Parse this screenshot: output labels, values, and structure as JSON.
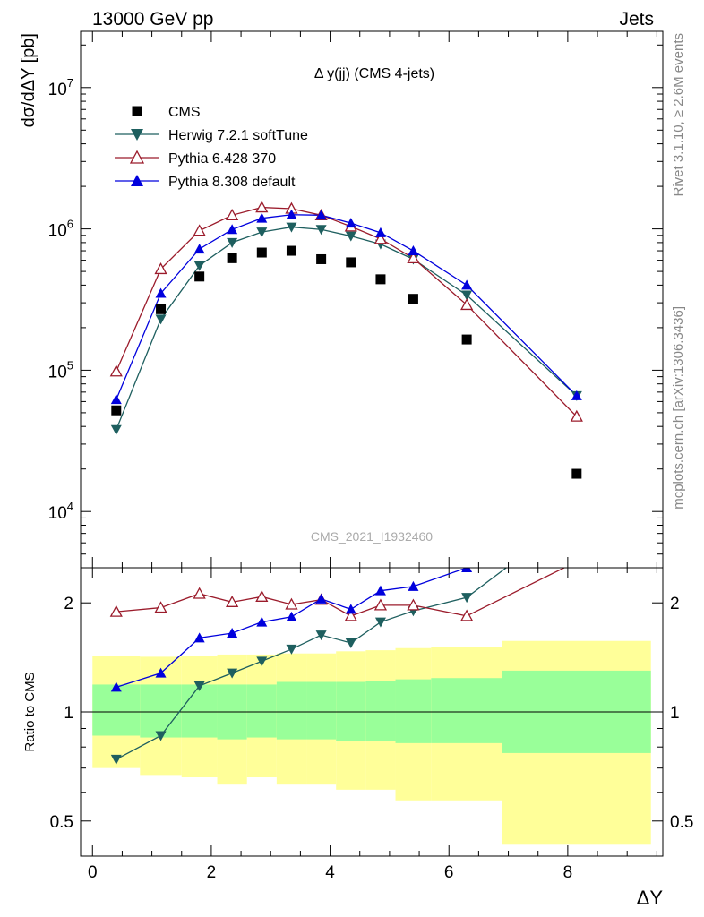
{
  "header": {
    "left": "13000 GeV pp",
    "right": "Jets"
  },
  "side_text": {
    "rivet": "Rivet 3.1.10, ≥ 2.6M events",
    "mcplots": "mcplots.cern.ch [arXiv:1306.3436]"
  },
  "watermark": "CMS_2021_I1932460",
  "colors": {
    "cms": "#000000",
    "herwig": "#1e5f5f",
    "pythia6": "#9b1b2b",
    "pythia8": "#0000dd",
    "band_outer": "#ffff99",
    "band_inner": "#99ff99"
  },
  "chart_data": [
    {
      "type": "scatter",
      "title": "Δ y(jj) (CMS 4-jets)",
      "ylabel": "dσ/dΔY [pb]",
      "xlabel": "",
      "ylog": true,
      "xlim": [
        -0.2,
        9.6
      ],
      "ylim": [
        4000,
        25000000
      ],
      "ytick_labels": [
        "10^4",
        "10^5",
        "10^6",
        "10^7"
      ],
      "legend_position": "top-left",
      "series": [
        {
          "name": "CMS",
          "marker": "square",
          "x": [
            0.4,
            1.15,
            1.8,
            2.35,
            2.85,
            3.35,
            3.85,
            4.35,
            4.85,
            5.4,
            6.3,
            8.15
          ],
          "y": [
            52000,
            270000,
            460000,
            620000,
            680000,
            700000,
            610000,
            580000,
            440000,
            320000,
            165000,
            18500
          ]
        },
        {
          "name": "Herwig 7.2.1 softTune",
          "marker": "triangle-down",
          "x": [
            0.4,
            1.15,
            1.8,
            2.35,
            2.85,
            3.35,
            3.85,
            4.35,
            4.85,
            5.4,
            6.3,
            8.15
          ],
          "y": [
            38000,
            230000,
            550000,
            800000,
            950000,
            1030000,
            990000,
            890000,
            780000,
            610000,
            340000,
            66000
          ]
        },
        {
          "name": "Pythia 6.428 370",
          "marker": "triangle-up-open",
          "x": [
            0.4,
            1.15,
            1.8,
            2.35,
            2.85,
            3.35,
            3.85,
            4.35,
            4.85,
            5.4,
            6.3,
            8.15
          ],
          "y": [
            98000,
            520000,
            970000,
            1250000,
            1420000,
            1390000,
            1250000,
            1040000,
            850000,
            620000,
            290000,
            47000
          ]
        },
        {
          "name": "Pythia 8.308 default",
          "marker": "triangle-up",
          "x": [
            0.4,
            1.15,
            1.8,
            2.35,
            2.85,
            3.35,
            3.85,
            4.35,
            4.85,
            5.4,
            6.3,
            8.15
          ],
          "y": [
            62000,
            350000,
            720000,
            990000,
            1190000,
            1260000,
            1250000,
            1100000,
            940000,
            700000,
            400000,
            66000
          ]
        }
      ]
    },
    {
      "type": "line",
      "ylabel": "Ratio to CMS",
      "xlabel": "ΔY",
      "ylog": true,
      "xlim": [
        -0.2,
        9.6
      ],
      "ylim": [
        0.4,
        2.5
      ],
      "xticks": [
        0,
        2,
        4,
        6,
        8
      ],
      "yticks": [
        0.5,
        1,
        2
      ],
      "bins": [
        [
          0,
          0.8
        ],
        [
          0.8,
          1.5
        ],
        [
          1.5,
          2.1
        ],
        [
          2.1,
          2.6
        ],
        [
          2.6,
          3.1
        ],
        [
          3.1,
          3.6
        ],
        [
          3.6,
          4.1
        ],
        [
          4.1,
          4.6
        ],
        [
          4.6,
          5.1
        ],
        [
          5.1,
          5.7
        ],
        [
          5.7,
          6.9
        ],
        [
          6.9,
          9.4
        ]
      ],
      "band_outer": [
        [
          0.7,
          1.43
        ],
        [
          0.67,
          1.42
        ],
        [
          0.66,
          1.43
        ],
        [
          0.63,
          1.44
        ],
        [
          0.66,
          1.44
        ],
        [
          0.63,
          1.45
        ],
        [
          0.63,
          1.45
        ],
        [
          0.61,
          1.47
        ],
        [
          0.61,
          1.48
        ],
        [
          0.57,
          1.5
        ],
        [
          0.57,
          1.51
        ],
        [
          0.43,
          1.57
        ]
      ],
      "band_inner": [
        [
          0.86,
          1.19
        ],
        [
          0.85,
          1.19
        ],
        [
          0.85,
          1.19
        ],
        [
          0.84,
          1.19
        ],
        [
          0.85,
          1.19
        ],
        [
          0.84,
          1.21
        ],
        [
          0.84,
          1.21
        ],
        [
          0.83,
          1.21
        ],
        [
          0.83,
          1.22
        ],
        [
          0.82,
          1.23
        ],
        [
          0.82,
          1.24
        ],
        [
          0.77,
          1.3
        ]
      ],
      "series": [
        {
          "name": "Herwig 7.2.1 softTune",
          "x": [
            0.4,
            1.15,
            1.8,
            2.35,
            2.85,
            3.35,
            3.85,
            4.35,
            4.85,
            5.4,
            6.3,
            8.15
          ],
          "y": [
            0.74,
            0.86,
            1.18,
            1.28,
            1.38,
            1.49,
            1.63,
            1.55,
            1.77,
            1.9,
            2.07,
            3.5
          ]
        },
        {
          "name": "Pythia 6.428 370",
          "x": [
            0.4,
            1.15,
            1.8,
            2.35,
            2.85,
            3.35,
            3.85,
            4.35,
            4.85,
            5.4,
            6.3,
            8.15
          ],
          "y": [
            1.89,
            1.94,
            2.12,
            2.01,
            2.08,
            1.98,
            2.04,
            1.84,
            1.97,
            1.97,
            1.84,
            2.6
          ]
        },
        {
          "name": "Pythia 8.308 default",
          "x": [
            0.4,
            1.15,
            1.8,
            2.35,
            2.85,
            3.35,
            3.85,
            4.35,
            4.85,
            5.4,
            6.3,
            8.15
          ],
          "y": [
            1.17,
            1.28,
            1.6,
            1.65,
            1.77,
            1.83,
            2.05,
            1.92,
            2.16,
            2.22,
            2.5,
            3.5
          ]
        }
      ]
    }
  ]
}
